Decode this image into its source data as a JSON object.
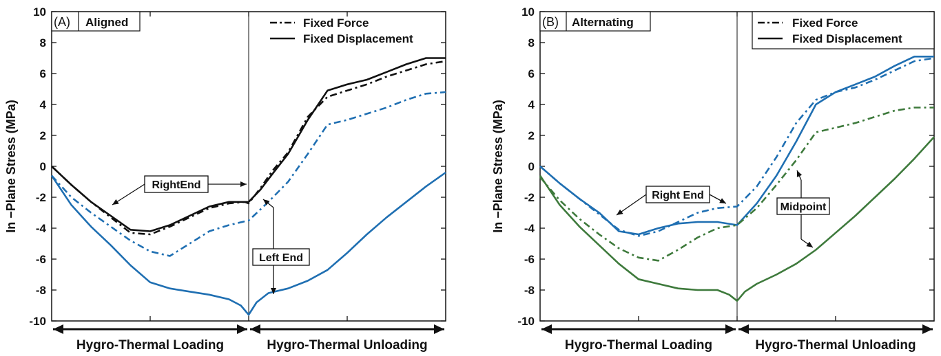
{
  "colors": {
    "black": "#111111",
    "blue": "#1f6fb2",
    "green": "#3e7a3c"
  },
  "bottom_labels": {
    "loading": "Hygro-Thermal Loading",
    "unloading": "Hygro-Thermal Unloading"
  },
  "chart_data": [
    {
      "type": "line",
      "panel_label": "(A)",
      "panel_title": "Aligned",
      "ylabel": "In −Plane Stress (MPa)",
      "ylim": [
        -10,
        10
      ],
      "yticks": [
        -10,
        -8,
        -6,
        -4,
        -2,
        0,
        2,
        4,
        6,
        8,
        10
      ],
      "xlim": [
        0,
        1
      ],
      "phase_divider_x": 0.5,
      "legend": {
        "placement": "top-right",
        "entries": [
          {
            "label": "Fixed Force",
            "style": "dashdot"
          },
          {
            "label": "Fixed Displacement",
            "style": "solid"
          }
        ]
      },
      "series": [
        {
          "color": "black",
          "style": "solid",
          "x": [
            0,
            0.05,
            0.1,
            0.15,
            0.2,
            0.25,
            0.3,
            0.35,
            0.4,
            0.45,
            0.49,
            0.5,
            0.53,
            0.56,
            0.6,
            0.65,
            0.7,
            0.75,
            0.8,
            0.85,
            0.9,
            0.95,
            1.0
          ],
          "y": [
            0,
            -1.2,
            -2.3,
            -3.2,
            -4.1,
            -4.2,
            -3.8,
            -3.2,
            -2.6,
            -2.3,
            -2.3,
            -2.3,
            -1.5,
            -0.5,
            0.8,
            3.0,
            4.9,
            5.3,
            5.6,
            6.1,
            6.6,
            7.0,
            7.0
          ]
        },
        {
          "color": "black",
          "style": "dashdot",
          "x": [
            0,
            0.05,
            0.1,
            0.15,
            0.2,
            0.25,
            0.3,
            0.35,
            0.4,
            0.45,
            0.49,
            0.5,
            0.53,
            0.56,
            0.6,
            0.65,
            0.7,
            0.75,
            0.8,
            0.85,
            0.9,
            0.95,
            1.0
          ],
          "y": [
            0,
            -1.2,
            -2.3,
            -3.3,
            -4.3,
            -4.4,
            -3.9,
            -3.3,
            -2.7,
            -2.4,
            -2.3,
            -2.4,
            -1.4,
            -0.3,
            0.9,
            3.2,
            4.5,
            4.9,
            5.3,
            5.8,
            6.2,
            6.6,
            6.8
          ]
        },
        {
          "color": "blue",
          "style": "dashdot",
          "x": [
            0,
            0.05,
            0.1,
            0.15,
            0.2,
            0.25,
            0.3,
            0.35,
            0.4,
            0.45,
            0.5,
            0.55,
            0.6,
            0.65,
            0.7,
            0.75,
            0.8,
            0.85,
            0.9,
            0.95,
            1.0
          ],
          "y": [
            -0.6,
            -2.0,
            -3.0,
            -3.9,
            -4.8,
            -5.5,
            -5.8,
            -5.0,
            -4.2,
            -3.8,
            -3.5,
            -2.3,
            -1.0,
            0.8,
            2.7,
            3.0,
            3.4,
            3.8,
            4.3,
            4.7,
            4.8
          ]
        },
        {
          "color": "blue",
          "style": "solid",
          "x": [
            0,
            0.05,
            0.1,
            0.15,
            0.2,
            0.25,
            0.3,
            0.35,
            0.4,
            0.45,
            0.48,
            0.5,
            0.52,
            0.55,
            0.6,
            0.65,
            0.7,
            0.75,
            0.8,
            0.85,
            0.9,
            0.95,
            1.0
          ],
          "y": [
            -0.6,
            -2.5,
            -3.9,
            -5.1,
            -6.4,
            -7.5,
            -7.9,
            -8.1,
            -8.3,
            -8.6,
            -9.0,
            -9.6,
            -8.8,
            -8.2,
            -7.9,
            -7.4,
            -6.7,
            -5.6,
            -4.4,
            -3.3,
            -2.3,
            -1.3,
            -0.4
          ]
        }
      ],
      "annotations": [
        {
          "text": "RightEnd"
        },
        {
          "text": "Left End"
        }
      ]
    },
    {
      "type": "line",
      "panel_label": "(B)",
      "panel_title": "Alternating",
      "ylabel": "In −Plane Stress (MPa)",
      "ylim": [
        -10,
        10
      ],
      "yticks": [
        -10,
        -8,
        -6,
        -4,
        -2,
        0,
        2,
        4,
        6,
        8,
        10
      ],
      "xlim": [
        0,
        1
      ],
      "phase_divider_x": 0.5,
      "legend": {
        "placement": "top-right",
        "entries": [
          {
            "label": "Fixed Force",
            "style": "dashdot"
          },
          {
            "label": "Fixed Displacement",
            "style": "solid"
          }
        ]
      },
      "series": [
        {
          "color": "blue",
          "style": "solid",
          "x": [
            0,
            0.05,
            0.1,
            0.15,
            0.2,
            0.25,
            0.3,
            0.35,
            0.4,
            0.45,
            0.5,
            0.55,
            0.6,
            0.65,
            0.7,
            0.75,
            0.8,
            0.85,
            0.9,
            0.95,
            1.0
          ],
          "y": [
            0,
            -1.1,
            -2.1,
            -3.0,
            -4.2,
            -4.4,
            -4.0,
            -3.7,
            -3.6,
            -3.6,
            -3.8,
            -2.4,
            -0.6,
            1.6,
            4.0,
            4.8,
            5.3,
            5.8,
            6.5,
            7.1,
            7.1
          ]
        },
        {
          "color": "blue",
          "style": "dashdot",
          "x": [
            0,
            0.05,
            0.1,
            0.15,
            0.2,
            0.25,
            0.3,
            0.35,
            0.4,
            0.45,
            0.5,
            0.55,
            0.6,
            0.65,
            0.7,
            0.75,
            0.8,
            0.85,
            0.9,
            0.95,
            1.0
          ],
          "y": [
            0,
            -1.1,
            -2.1,
            -3.1,
            -4.1,
            -4.5,
            -4.2,
            -3.6,
            -3.0,
            -2.7,
            -2.6,
            -1.3,
            0.6,
            2.8,
            4.3,
            4.8,
            5.1,
            5.6,
            6.2,
            6.8,
            7.0
          ]
        },
        {
          "color": "green",
          "style": "dashdot",
          "x": [
            0,
            0.05,
            0.1,
            0.15,
            0.2,
            0.25,
            0.3,
            0.35,
            0.4,
            0.45,
            0.5,
            0.55,
            0.6,
            0.65,
            0.7,
            0.75,
            0.8,
            0.85,
            0.9,
            0.95,
            1.0
          ],
          "y": [
            -0.7,
            -2.2,
            -3.4,
            -4.4,
            -5.3,
            -5.9,
            -6.1,
            -5.4,
            -4.6,
            -4.0,
            -3.8,
            -2.7,
            -1.2,
            0.4,
            2.2,
            2.5,
            2.8,
            3.2,
            3.6,
            3.8,
            3.8
          ]
        },
        {
          "color": "green",
          "style": "solid",
          "x": [
            0,
            0.05,
            0.1,
            0.15,
            0.2,
            0.25,
            0.3,
            0.35,
            0.4,
            0.45,
            0.48,
            0.5,
            0.52,
            0.55,
            0.6,
            0.65,
            0.7,
            0.75,
            0.8,
            0.85,
            0.9,
            0.95,
            1.0
          ],
          "y": [
            -0.6,
            -2.5,
            -3.9,
            -5.1,
            -6.3,
            -7.3,
            -7.6,
            -7.9,
            -8.0,
            -8.0,
            -8.3,
            -8.7,
            -8.1,
            -7.6,
            -7.0,
            -6.3,
            -5.4,
            -4.3,
            -3.2,
            -2.0,
            -0.8,
            0.5,
            1.9
          ]
        }
      ],
      "annotations": [
        {
          "text": "Right  End"
        },
        {
          "text": "Midpoint"
        }
      ]
    }
  ]
}
